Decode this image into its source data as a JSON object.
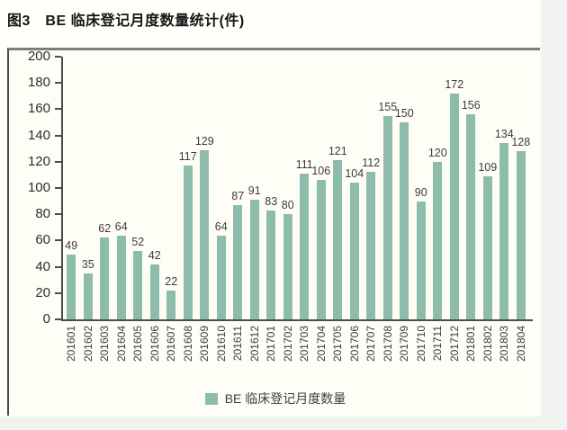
{
  "header": {
    "title": "图3　BE 临床登记月度数量统计(件)"
  },
  "chart_data": {
    "type": "bar",
    "title": "图3 BE 临床登记月度数量统计(件)",
    "categories": [
      "201601",
      "201602",
      "201603",
      "201604",
      "201605",
      "201606",
      "201607",
      "201608",
      "201609",
      "201610",
      "201611",
      "201612",
      "201701",
      "201702",
      "201703",
      "201704",
      "201705",
      "201706",
      "201707",
      "201708",
      "201709",
      "201710",
      "201711",
      "201712",
      "201801",
      "201802",
      "201803",
      "201804"
    ],
    "values": [
      49,
      35,
      62,
      64,
      52,
      42,
      22,
      117,
      129,
      64,
      87,
      91,
      83,
      80,
      111,
      106,
      121,
      104,
      112,
      155,
      150,
      90,
      120,
      172,
      156,
      109,
      134,
      128
    ],
    "xlabel": "",
    "ylabel": "",
    "ylim": [
      0,
      200
    ],
    "ytick_step": 20,
    "grid": false,
    "bar_color": "#8dbcac",
    "legend_position": "bottom",
    "legend": [
      {
        "label": "BE 临床登记月度数量",
        "color": "#8dbcac"
      }
    ]
  },
  "colors": {
    "chart_background": "#fffef6",
    "content_background": "#fffffb",
    "page_background": "#f2f2f0",
    "axis": "#4d4d4b",
    "bar": "#8dbcac"
  }
}
